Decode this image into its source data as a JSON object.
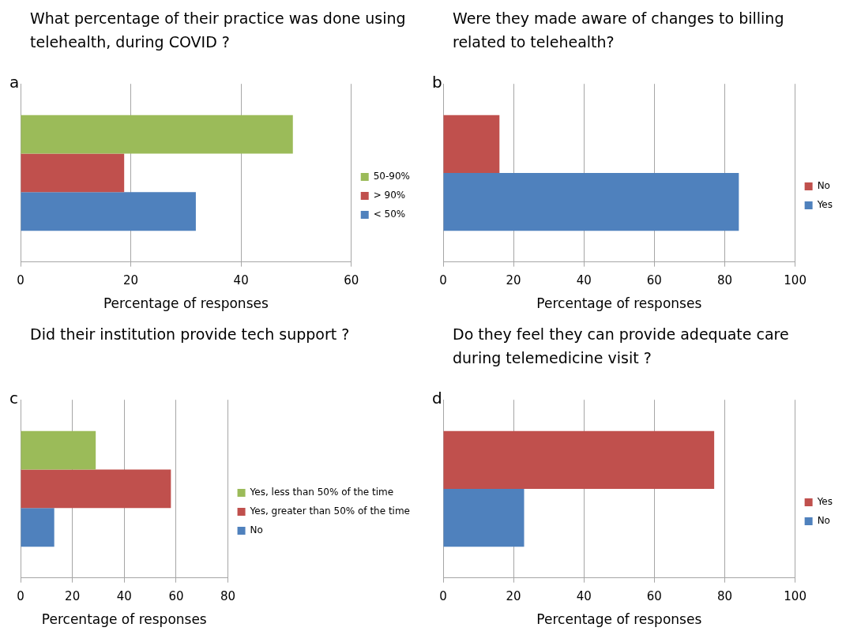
{
  "chart_data": [
    {
      "type": "bar",
      "title": "What percentage of their practice was done using telehealth, during COVID ?",
      "annotations": [
        "a"
      ],
      "orientation": "horizontal",
      "categories": [
        null
      ],
      "series": [
        {
          "name": "50-90%",
          "color": "#9bbb59",
          "values": [
            49.4
          ]
        },
        {
          "name": "> 90%",
          "color": "#c0504d",
          "values": [
            18.8
          ]
        },
        {
          "name": "< 50%",
          "color": "#4f81bd",
          "values": [
            31.8
          ]
        }
      ],
      "xlim": [
        0,
        60
      ],
      "xticks": [
        0,
        20,
        40,
        60
      ],
      "xlabel": "Percentage of responses",
      "grid": "x",
      "legend": "right"
    },
    {
      "type": "bar",
      "title": "Were they made aware of changes to billing related to telehealth?",
      "annotations": [
        "b"
      ],
      "orientation": "horizontal",
      "categories": [
        null
      ],
      "series": [
        {
          "name": "No",
          "color": "#c0504d",
          "values": [
            16
          ]
        },
        {
          "name": "Yes",
          "color": "#4f81bd",
          "values": [
            84
          ]
        }
      ],
      "xlim": [
        0,
        100
      ],
      "xticks": [
        0,
        20,
        40,
        60,
        80,
        100
      ],
      "xlabel": "Percentage of responses",
      "grid": "x",
      "legend": "right"
    },
    {
      "type": "bar",
      "title": "Did their institution provide tech support ?",
      "annotations": [
        "c"
      ],
      "orientation": "horizontal",
      "categories": [
        null
      ],
      "series": [
        {
          "name": "Yes, less than 50% of the time",
          "color": "#9bbb59",
          "values": [
            29
          ]
        },
        {
          "name": "Yes, greater than 50% of the time",
          "color": "#c0504d",
          "values": [
            58
          ]
        },
        {
          "name": "No",
          "color": "#4f81bd",
          "values": [
            13
          ]
        }
      ],
      "xlim": [
        0,
        80
      ],
      "xticks": [
        0,
        20,
        40,
        60,
        80
      ],
      "xlabel": "Percentage of responses",
      "grid": "x",
      "legend": "right"
    },
    {
      "type": "bar",
      "title": "Do they feel they can provide adequate care during telemedicine visit ?",
      "annotations": [
        "d"
      ],
      "orientation": "horizontal",
      "categories": [
        null
      ],
      "series": [
        {
          "name": "Yes",
          "color": "#c0504d",
          "values": [
            77
          ]
        },
        {
          "name": "No",
          "color": "#4f81bd",
          "values": [
            23
          ]
        }
      ],
      "xlim": [
        0,
        100
      ],
      "xticks": [
        0,
        20,
        40,
        60,
        80,
        100
      ],
      "xlabel": "Percentage of responses",
      "grid": "x",
      "legend": "right"
    }
  ]
}
